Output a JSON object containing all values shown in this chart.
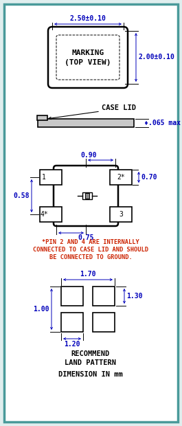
{
  "bg_color": "#e0eeee",
  "inner_bg": "#ffffff",
  "border_color": "#4a9a9a",
  "line_color": "#000000",
  "dim_color": "#0000bb",
  "text_color": "#cc2200",
  "label_color": "#000000",
  "sections": {
    "top_view": {
      "dim_w": "2.50±0.10",
      "dim_h": "2.00±0.10",
      "label1": "MARKING",
      "label2": "(TOP VIEW)"
    },
    "case_lid": {
      "label": "CASE LID",
      "dim": ".065 max"
    },
    "pin_diagram": {
      "dim_090": "0.90",
      "dim_058": "0.58",
      "dim_070": "0.70",
      "dim_075": "0.75",
      "pin1": "1",
      "pin2": "2*",
      "pin3": "3",
      "pin4": "4*",
      "note_line1": "*PIN 2 AND 4 ARE INTERNALLY",
      "note_line2": "CONNECTED TO CASE LID AND SHOULD",
      "note_line3": "BE CONNECTED TO GROUND."
    },
    "land_pattern": {
      "dim_170": "1.70",
      "dim_130": "1.30",
      "dim_100": "1.00",
      "dim_120": "1.20",
      "label1": "RECOMMEND",
      "label2": "LAND PATTERN",
      "label3": "DIMENSION IN mm"
    }
  }
}
